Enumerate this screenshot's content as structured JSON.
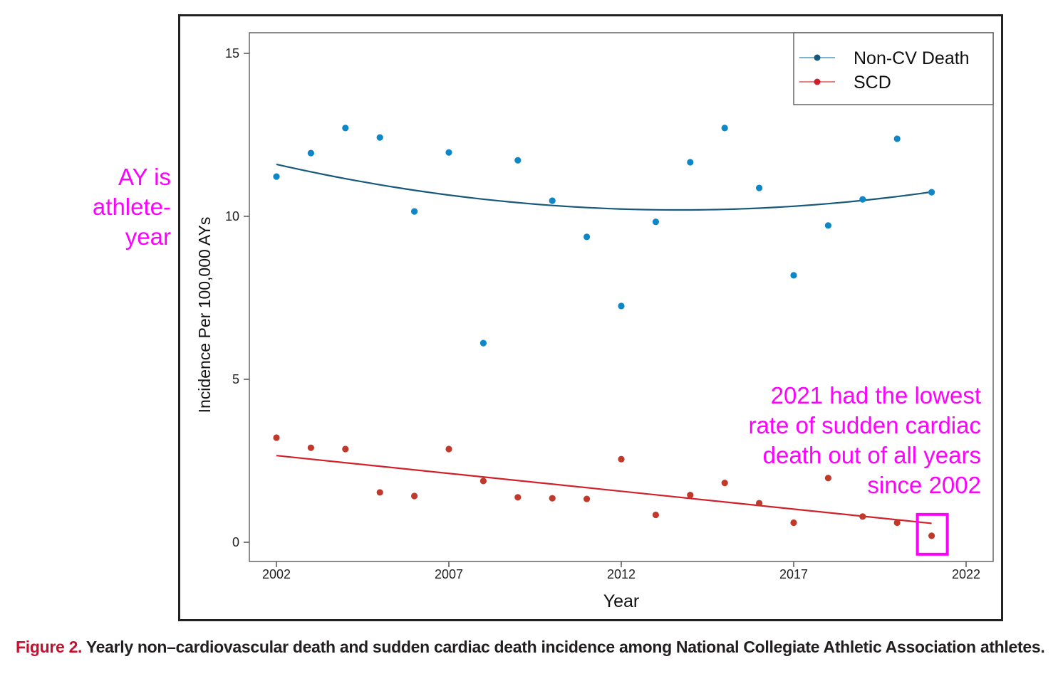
{
  "chart_data": {
    "type": "scatter",
    "title": "",
    "xlabel": "Year",
    "ylabel": "Incidence Per 100,000 AYs",
    "xlim": [
      2001.3,
      2022.5
    ],
    "ylim": [
      -0.6,
      15.6
    ],
    "xticks": [
      2002,
      2007,
      2012,
      2017,
      2022
    ],
    "yticks": [
      0,
      5,
      10,
      15
    ],
    "grid": false,
    "legend_position": "top-right",
    "x": [
      2002,
      2003,
      2004,
      2005,
      2006,
      2007,
      2008,
      2009,
      2010,
      2011,
      2012,
      2013,
      2014,
      2015,
      2016,
      2017,
      2018,
      2019,
      2020,
      2021
    ],
    "series": [
      {
        "name": "Non-CV Death",
        "point_color": "#0f87c6",
        "line_color": "#17597a",
        "legend_line_color": "#6aa8c8",
        "values": [
          11.22,
          11.94,
          12.71,
          12.42,
          10.15,
          11.96,
          6.11,
          11.72,
          10.48,
          9.37,
          7.25,
          9.83,
          11.66,
          12.71,
          10.87,
          8.19,
          9.72,
          10.52,
          12.38,
          10.74
        ],
        "trend": {
          "type": "quadratic",
          "x": [
            2002,
            2007,
            2012,
            2017,
            2021
          ],
          "y": [
            11.6,
            10.65,
            10.2,
            10.35,
            10.73
          ]
        }
      },
      {
        "name": "SCD",
        "point_color": "#c0392b",
        "line_color": "#d0202a",
        "legend_line_color": "#e07070",
        "values": [
          3.21,
          2.9,
          2.86,
          1.53,
          1.42,
          2.86,
          1.88,
          1.38,
          1.35,
          1.33,
          2.55,
          0.84,
          1.45,
          1.82,
          1.2,
          0.6,
          1.97,
          0.79,
          0.6,
          0.2
        ],
        "trend": {
          "type": "linear",
          "x": [
            2002,
            2021
          ],
          "y": [
            2.66,
            0.58
          ]
        }
      }
    ],
    "annotations": [
      {
        "text_lines": [
          "AY is",
          "athlete-",
          "year"
        ],
        "color": "#ff00ff"
      },
      {
        "text_lines": [
          "2021 had the lowest",
          "rate of sudden cardiac",
          "death out of all years",
          "since 2002"
        ],
        "color": "#ff00ff",
        "highlight": {
          "x": 2021,
          "series": "SCD",
          "box_color": "#ff00ff"
        }
      }
    ]
  },
  "caption": {
    "label": "Figure 2.",
    "text": " Yearly non–cardiovascular death and sudden cardiac death incidence among National Collegiate Athletic Association athletes."
  }
}
